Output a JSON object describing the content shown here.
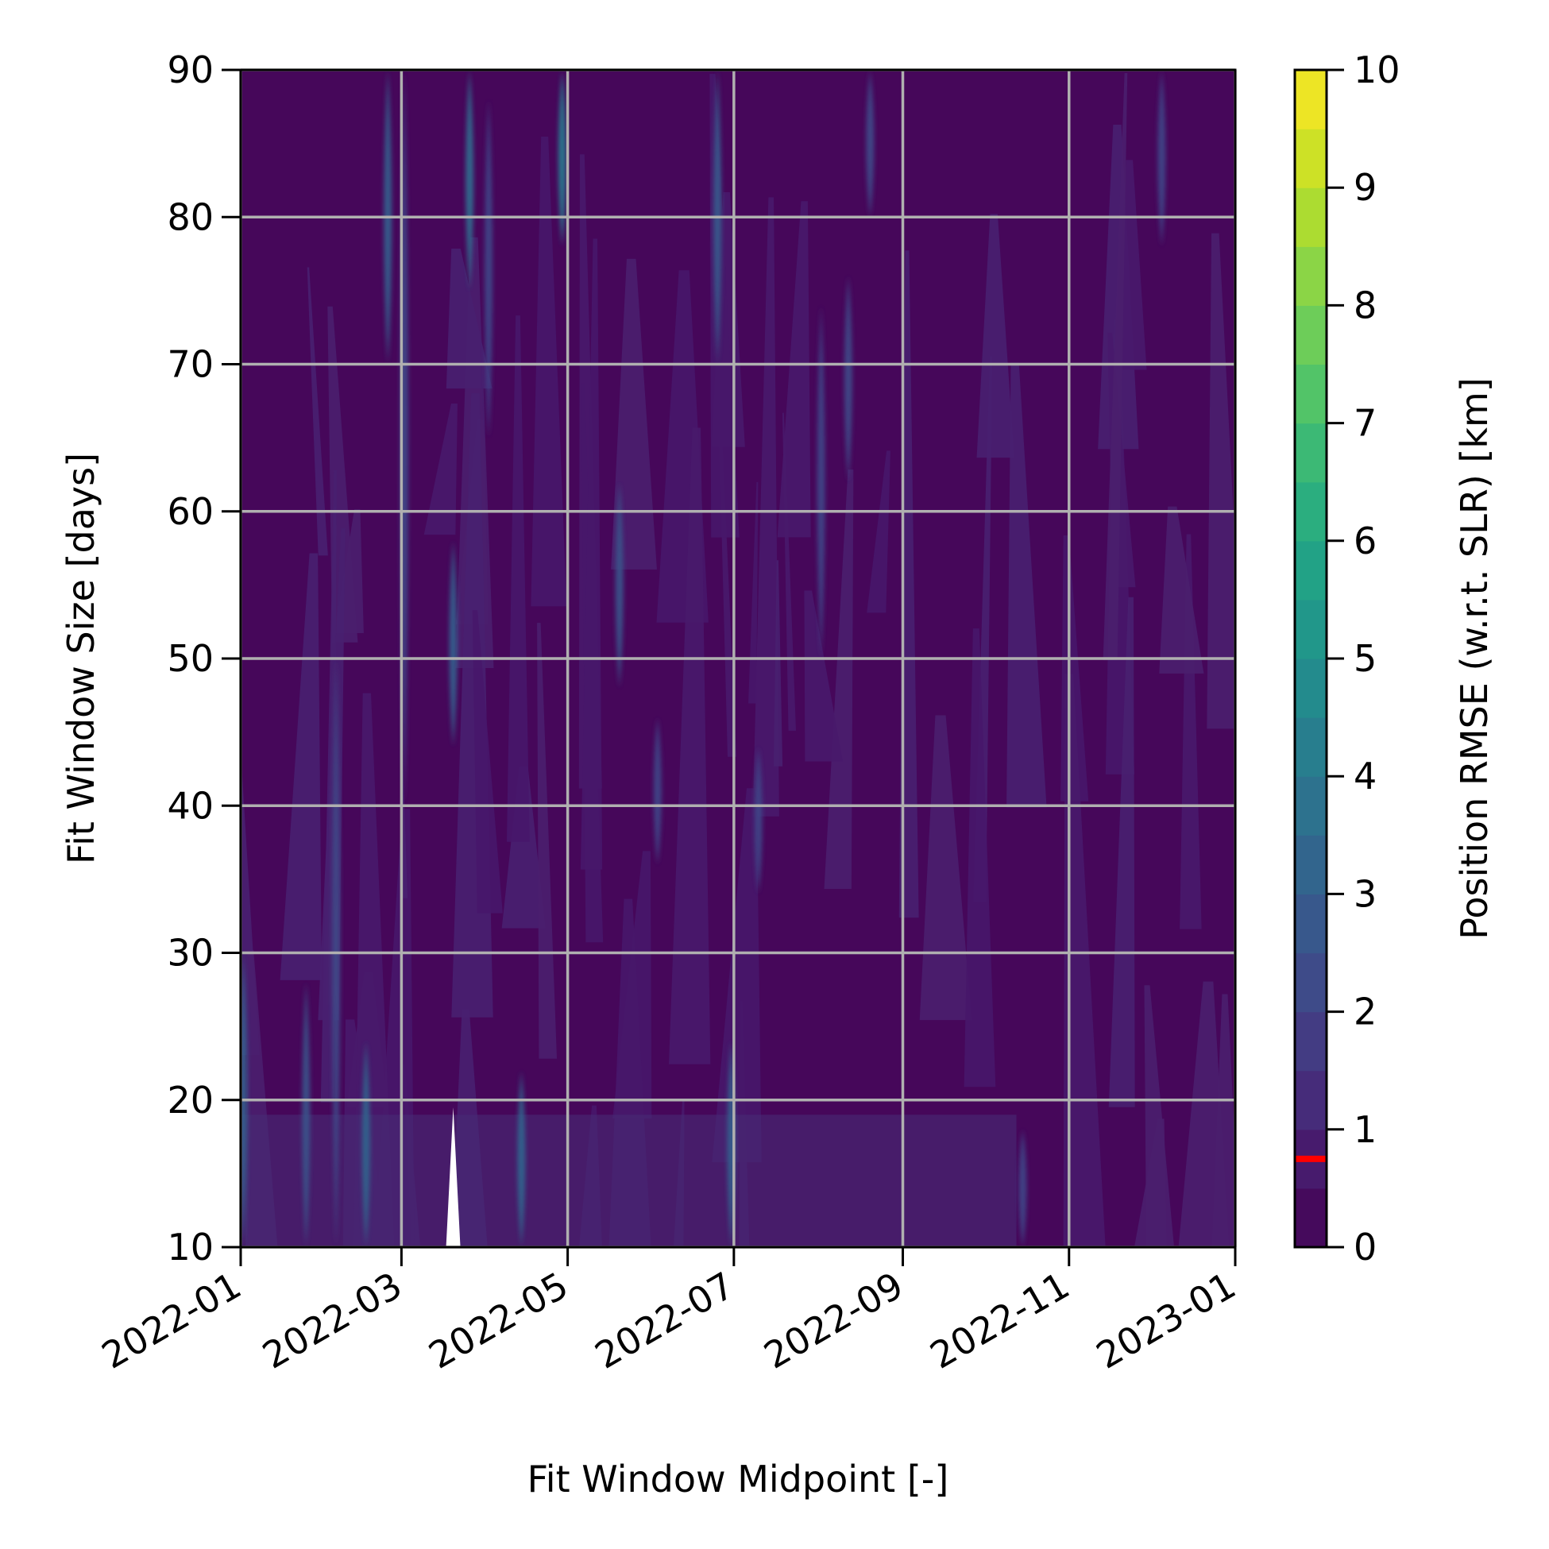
{
  "chart_data": {
    "type": "heatmap",
    "title": "",
    "xlabel": "Fit Window Midpoint [-]",
    "ylabel": "Fit Window Size [days]",
    "colorbar_label": "Position RMSE (w.r.t. SLR) [km]",
    "colormap": "viridis",
    "xlim": [
      "2022-01-01",
      "2023-01-01"
    ],
    "ylim": [
      10,
      90
    ],
    "clim": [
      0,
      10
    ],
    "x_ticks": [
      "2022-01",
      "2022-03",
      "2022-05",
      "2022-07",
      "2022-09",
      "2022-11",
      "2023-01"
    ],
    "y_ticks": [
      "10",
      "20",
      "30",
      "40",
      "50",
      "60",
      "70",
      "80",
      "90"
    ],
    "colorbar_ticks": [
      "0",
      "1",
      "2",
      "3",
      "4",
      "5",
      "6",
      "7",
      "8",
      "9",
      "10"
    ],
    "colorbar_marker": {
      "value": 0.75,
      "color": "#ff0000"
    },
    "grid": true,
    "gap": {
      "x": "2022-03-20",
      "y_max": 19.5
    },
    "streaks": [
      {
        "x": "2022-01-02",
        "y0": 10,
        "y1": 30,
        "value": 3.0
      },
      {
        "x": "2022-01-25",
        "y0": 10,
        "y1": 28,
        "value": 2.5
      },
      {
        "x": "2022-02-05",
        "y0": 10,
        "y1": 50,
        "value": 2.2
      },
      {
        "x": "2022-02-16",
        "y0": 10,
        "y1": 24,
        "value": 3.2
      },
      {
        "x": "2022-02-24",
        "y0": 70,
        "y1": 90,
        "value": 3.0
      },
      {
        "x": "2022-03-02",
        "y0": 40,
        "y1": 90,
        "value": 2.2
      },
      {
        "x": "2022-03-20",
        "y0": 44,
        "y1": 58,
        "value": 3.0
      },
      {
        "x": "2022-03-26",
        "y0": 75,
        "y1": 90,
        "value": 3.5
      },
      {
        "x": "2022-04-02",
        "y0": 65,
        "y1": 88,
        "value": 2.0
      },
      {
        "x": "2022-04-14",
        "y0": 10,
        "y1": 22,
        "value": 3.2
      },
      {
        "x": "2022-04-29",
        "y0": 78,
        "y1": 90,
        "value": 4.0
      },
      {
        "x": "2022-05-20",
        "y0": 48,
        "y1": 62,
        "value": 2.5
      },
      {
        "x": "2022-06-03",
        "y0": 36,
        "y1": 46,
        "value": 2.0
      },
      {
        "x": "2022-06-25",
        "y0": 70,
        "y1": 90,
        "value": 2.8
      },
      {
        "x": "2022-06-30",
        "y0": 10,
        "y1": 24,
        "value": 3.0
      },
      {
        "x": "2022-07-10",
        "y0": 34,
        "y1": 44,
        "value": 2.0
      },
      {
        "x": "2022-08-02",
        "y0": 50,
        "y1": 74,
        "value": 2.0
      },
      {
        "x": "2022-08-12",
        "y0": 62,
        "y1": 76,
        "value": 2.2
      },
      {
        "x": "2022-08-20",
        "y0": 80,
        "y1": 90,
        "value": 2.2
      },
      {
        "x": "2022-10-15",
        "y0": 10,
        "y1": 18,
        "value": 2.0
      },
      {
        "x": "2022-12-05",
        "y0": 78,
        "y1": 90,
        "value": 2.0
      }
    ]
  }
}
